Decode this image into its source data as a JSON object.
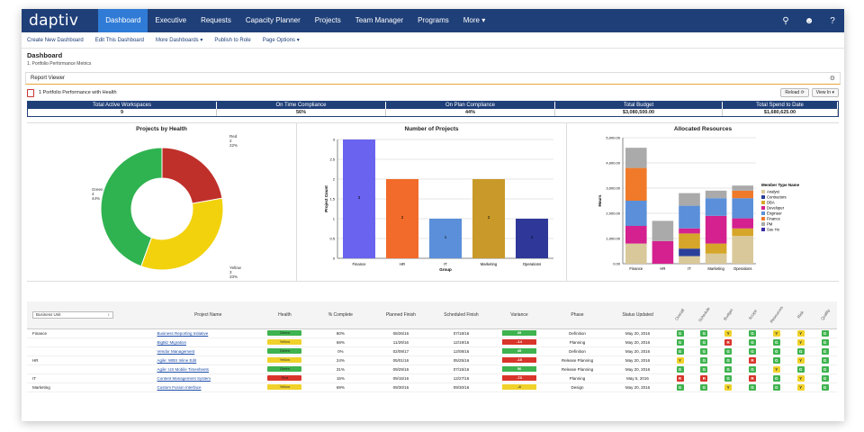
{
  "app": {
    "logo": "daptiv",
    "nav": [
      "Dashboard",
      "Executive",
      "Requests",
      "Capacity Planner",
      "Projects",
      "Team Manager",
      "Programs",
      "More ▾"
    ],
    "nav_icons": [
      "search-icon",
      "user-icon",
      "help-icon"
    ],
    "nav_icon_glyphs": [
      "⚲",
      "☻",
      "?"
    ]
  },
  "subnav": [
    "Create New Dashboard",
    "Edit This Dashboard",
    "More Dashboards ▾",
    "Publish to Role",
    "Page Options ▾"
  ],
  "page": {
    "title": "Dashboard",
    "subtitle": "1. Portfolio Performance Metrics"
  },
  "report_viewer": {
    "label": "Report Viewer",
    "report_title": "1 Portfolio Performance with Health",
    "reload": "Reload ⟳",
    "view_in": "View In ▾"
  },
  "kpis": [
    {
      "label": "Total Active Workspaces",
      "value": "9"
    },
    {
      "label": "On Time Compliance",
      "value": "56%"
    },
    {
      "label": "On Plan Compliance",
      "value": "44%"
    },
    {
      "label": "Total Budget",
      "value": "$3,080,500.00"
    },
    {
      "label": "Total Spend to Date",
      "value": "$1,680,625.00"
    }
  ],
  "chart_data": [
    {
      "type": "pie",
      "title": "Projects by Health",
      "categories": [
        "Red",
        "Yellow",
        "Green"
      ],
      "values": [
        2,
        3,
        4
      ],
      "percents": [
        "22%",
        "33%",
        "44%"
      ],
      "colors": [
        "#c0302a",
        "#f2d20d",
        "#2fb350"
      ]
    },
    {
      "type": "bar",
      "title": "Number of Projects",
      "categories": [
        "Finance",
        "HR",
        "IT",
        "Marketing",
        "Operations"
      ],
      "values": [
        3,
        2,
        1,
        2,
        1
      ],
      "colors": [
        "#6a63ef",
        "#f26b2a",
        "#5b8fd9",
        "#c99a2a",
        "#2f3899"
      ],
      "xlabel": "Group",
      "ylabel": "Project Count",
      "yticks": [
        "0",
        "0.5",
        "1",
        "1.5",
        "2",
        "2.5",
        "3"
      ],
      "ylim": [
        0,
        3
      ]
    },
    {
      "type": "bar",
      "stacked": true,
      "title": "Allocated Resources",
      "categories": [
        "Finance",
        "HR",
        "IT",
        "Marketing",
        "Operations"
      ],
      "xlabel": "",
      "ylabel": "Hours",
      "yticks": [
        "0.00",
        "1,000.00",
        "2,000.00",
        "3,000.00",
        "4,000.00",
        "5,000.00"
      ],
      "ylim": [
        0,
        5000
      ],
      "legend_title": "Member Type Name",
      "legend_position": "right",
      "series": [
        {
          "name": "Analyst",
          "color": "#d9c89a",
          "values": [
            800,
            0,
            300,
            400,
            1100
          ]
        },
        {
          "name": "Contractors",
          "color": "#2a3f9a",
          "values": [
            0,
            0,
            300,
            0,
            0
          ]
        },
        {
          "name": "DBA",
          "color": "#d6a62a",
          "values": [
            0,
            0,
            600,
            400,
            300
          ]
        },
        {
          "name": "Developer",
          "color": "#d4218f",
          "values": [
            700,
            900,
            200,
            1100,
            400
          ]
        },
        {
          "name": "Engineer",
          "color": "#5b8fd9",
          "values": [
            1000,
            0,
            900,
            700,
            800
          ]
        },
        {
          "name": "Finance",
          "color": "#f07a2a",
          "values": [
            1300,
            0,
            0,
            0,
            300
          ]
        },
        {
          "name": "PM",
          "color": "#aaaaaa",
          "values": [
            800,
            800,
            500,
            300,
            200
          ]
        },
        {
          "name": "Sue Ho",
          "color": "#3a2fa6",
          "values": [
            0,
            0,
            0,
            0,
            0
          ]
        }
      ]
    }
  ],
  "table": {
    "group_label": "Business Unit",
    "columns": [
      "Project Name",
      "Health",
      "% Complete",
      "Planned Finish",
      "Scheduled Finish",
      "Variance",
      "Phase",
      "Status Updated"
    ],
    "rotated_columns": [
      "Overall",
      "Schedule",
      "Budget",
      "Scope",
      "Resources",
      "Risk",
      "Quality"
    ],
    "rows": [
      {
        "bu": "Finance",
        "name": "Business Reporting Initiative",
        "health": "Green",
        "hc": "g",
        "pct": "80%",
        "planned": "08/26/16",
        "scheduled": "07/18/16",
        "variance": "39",
        "vc": "g",
        "phase": "Definition",
        "updated": "May 20, 2016",
        "tags": [
          "G",
          "G",
          "Y",
          "G",
          "Y",
          "Y",
          "G"
        ]
      },
      {
        "bu": "",
        "name": "BigBiz Migration",
        "health": "Yellow",
        "hc": "y",
        "pct": "68%",
        "planned": "11/29/16",
        "scheduled": "12/19/16",
        "variance": "-14",
        "vc": "r",
        "phase": "Planning",
        "updated": "May 20, 2016",
        "tags": [
          "G",
          "G",
          "R",
          "G",
          "G",
          "Y",
          "G"
        ]
      },
      {
        "bu": "",
        "name": "Vendor Management",
        "health": "Green",
        "hc": "g",
        "pct": "0%",
        "planned": "02/09/17",
        "scheduled": "12/08/16",
        "variance": "45",
        "vc": "g",
        "phase": "Definition",
        "updated": "May 20, 2016",
        "tags": [
          "G",
          "G",
          "G",
          "G",
          "G",
          "G",
          "G"
        ]
      },
      {
        "bu": "HR",
        "name": "Agile: WBS Inline Edit",
        "health": "Yellow",
        "hc": "y",
        "pct": "24%",
        "planned": "05/01/16",
        "scheduled": "05/25/16",
        "variance": "-18",
        "vc": "r",
        "phase": "Release Planning",
        "updated": "May 20, 2016",
        "tags": [
          "Y",
          "G",
          "G",
          "R",
          "G",
          "Y",
          "G"
        ]
      },
      {
        "bu": "",
        "name": "Agile: US Mobile Timesheets",
        "health": "Green",
        "hc": "g",
        "pct": "31%",
        "planned": "09/29/16",
        "scheduled": "07/15/16",
        "variance": "56",
        "vc": "g",
        "phase": "Release Planning",
        "updated": "May 20, 2016",
        "tags": [
          "G",
          "G",
          "G",
          "G",
          "Y",
          "G",
          "G"
        ]
      },
      {
        "bu": "IT",
        "name": "Content Management System",
        "health": "Red",
        "hc": "r",
        "pct": "15%",
        "planned": "09/15/16",
        "scheduled": "12/27/16",
        "variance": "-73",
        "vc": "r",
        "phase": "Planning",
        "updated": "May 5, 2016",
        "tags": [
          "R",
          "R",
          "G",
          "R",
          "G",
          "Y",
          "G"
        ]
      },
      {
        "bu": "Marketing",
        "name": "Custom Fusion Interface",
        "health": "Yellow",
        "hc": "y",
        "pct": "69%",
        "planned": "09/30/16",
        "scheduled": "09/30/16",
        "variance": "-4",
        "vc": "y",
        "phase": "Design",
        "updated": "May 20, 2016",
        "tags": [
          "G",
          "G",
          "Y",
          "G",
          "G",
          "Y",
          "G"
        ]
      }
    ]
  }
}
